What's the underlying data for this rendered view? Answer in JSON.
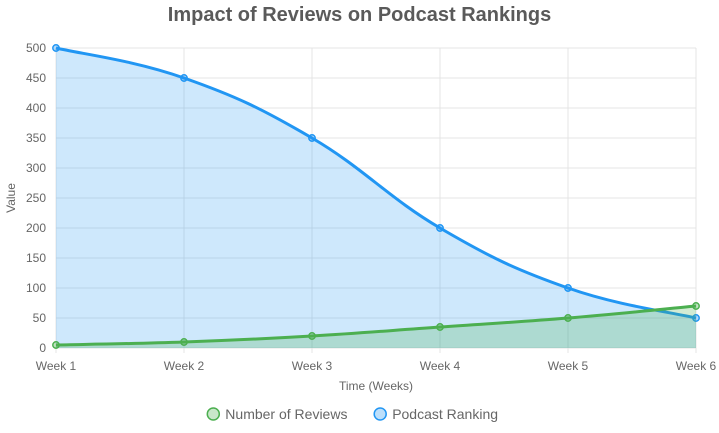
{
  "chart_data": {
    "type": "area",
    "title": "Impact of Reviews on Podcast Rankings",
    "xlabel": "Time (Weeks)",
    "ylabel": "Value",
    "categories": [
      "Week 1",
      "Week 2",
      "Week 3",
      "Week 4",
      "Week 5",
      "Week 6"
    ],
    "ylim": [
      0,
      500
    ],
    "yticks": [
      0,
      50,
      100,
      150,
      200,
      250,
      300,
      350,
      400,
      450,
      500
    ],
    "grid": true,
    "legend_position": "bottom",
    "series": [
      {
        "name": "Number of Reviews",
        "values": [
          5,
          10,
          20,
          35,
          50,
          70
        ],
        "color": "#4caf50",
        "fill": "rgba(76,175,80,0.25)"
      },
      {
        "name": "Podcast Ranking",
        "values": [
          500,
          450,
          350,
          200,
          100,
          50
        ],
        "color": "#2196f3",
        "fill": "rgba(33,150,243,0.22)"
      }
    ]
  }
}
